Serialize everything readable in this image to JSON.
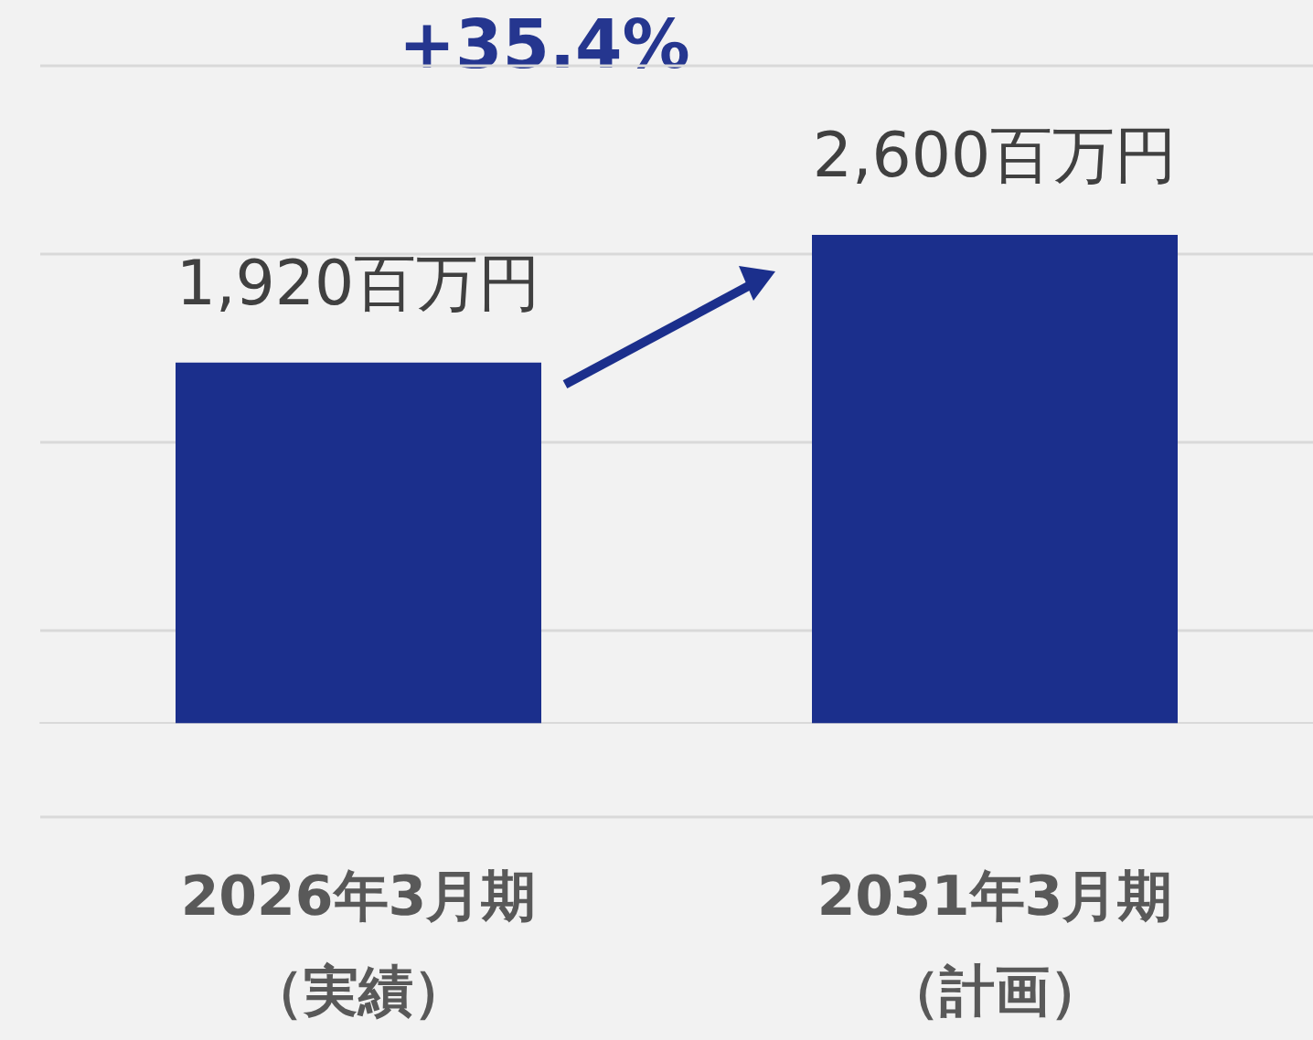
{
  "chart_data": {
    "type": "bar",
    "categories": [
      "2026年3月期（実績）",
      "2031年3月期（計画）"
    ],
    "values": [
      1920,
      2600
    ],
    "value_labels": [
      "1,920百万円",
      "2,600百万円"
    ],
    "color": "#1b2f8c",
    "ylim": [
      -500,
      3500
    ],
    "yticks": [
      {
        "value": -500,
        "label": null
      },
      {
        "value": 500,
        "label": null
      },
      {
        "value": 1500,
        "label": null
      },
      {
        "value": 2500,
        "label": null
      },
      {
        "value": 3500,
        "label": null
      }
    ],
    "tick_labels": "x",
    "grid": "y",
    "annotations": [
      "+35.4%"
    ]
  }
}
